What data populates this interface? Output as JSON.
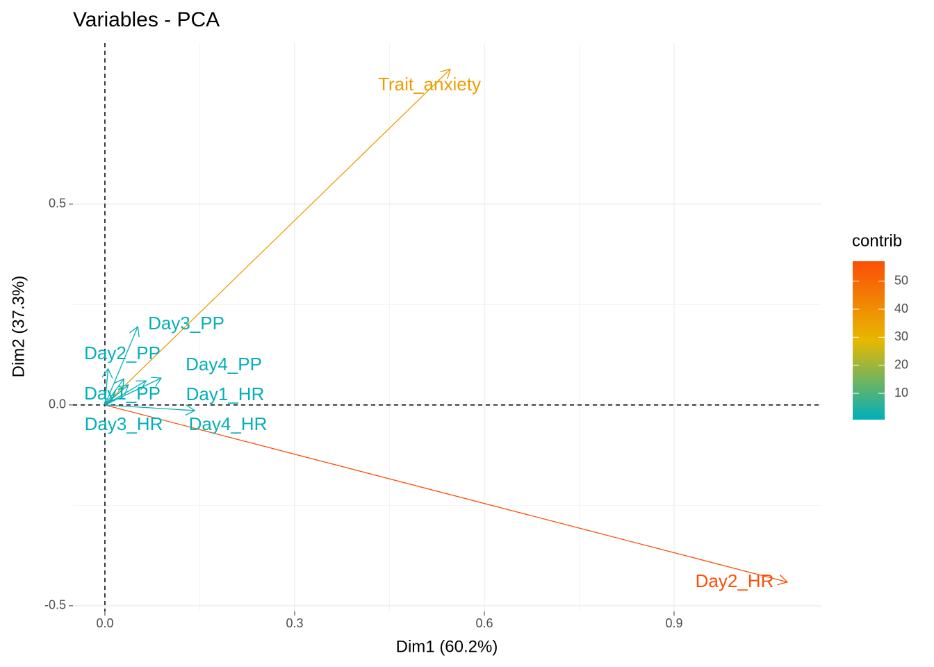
{
  "chart_data": {
    "type": "biplot",
    "title": "Variables - PCA",
    "x_label": "Dim1 (60.2%)",
    "y_label": "Dim2 (37.3%)",
    "series": [
      {
        "name": "Trait_anxiety",
        "x": 0.546,
        "y": 0.836,
        "contrib": 36.1
      },
      {
        "name": "Day2_HR",
        "x": 1.079,
        "y": -0.441,
        "contrib": 57.1
      },
      {
        "name": "Day3_PP",
        "x": 0.052,
        "y": 0.195,
        "contrib": 1.5
      },
      {
        "name": "Day2_PP",
        "x": 0.005,
        "y": 0.09,
        "contrib": 0.6
      },
      {
        "name": "Day4_PP",
        "x": 0.089,
        "y": 0.067,
        "contrib": 1.0
      },
      {
        "name": "Day1_PP",
        "x": 0.03,
        "y": 0.065,
        "contrib": 0.6
      },
      {
        "name": "Day1_HR",
        "x": 0.065,
        "y": 0.06,
        "contrib": 0.8
      },
      {
        "name": "Day3_HR",
        "x": 0.037,
        "y": 0.05,
        "contrib": 0.7
      },
      {
        "name": "Day4_HR",
        "x": 0.142,
        "y": -0.014,
        "contrib": 1.6
      }
    ],
    "xlim": [
      -0.0505,
      1.133
    ],
    "ylim": [
      -0.514,
      0.901
    ],
    "xticks": [
      {
        "value": 0,
        "label": "0.0"
      },
      0.3,
      0.6,
      0.9
    ],
    "yticks": [
      {
        "value": -0.5,
        "label": "-0.5"
      },
      {
        "value": 0,
        "label": "0.0"
      },
      0.5
    ],
    "grid": true,
    "legend": {
      "title": "contrib",
      "ticks": [
        10,
        20,
        30,
        40,
        50
      ],
      "colors": [
        "#00AFBB",
        "#E7B800",
        "#FC4E07"
      ]
    }
  }
}
